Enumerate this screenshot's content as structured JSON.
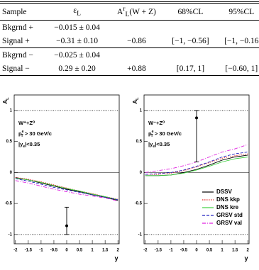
{
  "table": {
    "header": [
      "Sample",
      {
        "t": "ε",
        "sub": "L"
      },
      {
        "t": "A",
        "sup": "r",
        "sub": "L",
        "after": "(W + Z)"
      },
      "68%CL",
      "95%CL"
    ],
    "rows": [
      [
        "Bkgrnd +",
        "−0.015 ± 0.04"
      ],
      [
        "Signal +",
        "−0.31 ± 0.10",
        "−0.86",
        "[−1, −0.56]",
        "[−1, −0.16"
      ],
      [
        "Bkgrnd −",
        "−0.025 ± 0.04"
      ],
      [
        "Signal −",
        "0.29 ± 0.20",
        "+0.88",
        "[0.17, 1]",
        "[−0.60, 1]"
      ]
    ]
  },
  "chart_data": [
    {
      "type": "line",
      "xlabel": "y",
      "ylabel": {
        "t": "A",
        "sub": "L"
      },
      "xlim": [
        -2.05,
        2.05
      ],
      "ylim": [
        -1.15,
        1.25
      ],
      "xticks": [
        -2,
        -1.5,
        -1,
        -0.5,
        0,
        0.5,
        1,
        1.5,
        2
      ],
      "yticks": [
        -1,
        -0.5,
        0,
        0.5,
        1
      ],
      "annotations": [
        "W⁺+Z⁰",
        {
          "t": "p",
          "sup": "e",
          "sub": "T",
          "after": " > 30 GeV/c"
        },
        {
          "t": "|y",
          "sub": "e",
          "after": "|<0.35"
        }
      ],
      "hlines": [
        {
          "value": 1,
          "style": "dotted"
        },
        {
          "value": 0,
          "style": "solid"
        },
        {
          "value": -1,
          "style": "dotted"
        }
      ],
      "points": [
        {
          "x": 0,
          "y": -0.86,
          "ylow": -1.0,
          "yhigh": -0.56
        }
      ],
      "x": [
        -2,
        -1.5,
        -1,
        -0.5,
        0,
        0.5,
        1,
        1.5,
        2
      ],
      "legend": false,
      "series": [
        {
          "name": "DSSV",
          "color": "#000000",
          "dash": "solid",
          "values": [
            -0.08,
            -0.12,
            -0.17,
            -0.22,
            -0.27,
            -0.31,
            -0.36,
            -0.4,
            -0.45
          ]
        },
        {
          "name": "DNS kkp",
          "color": "#e02020",
          "dash": "dotted",
          "values": [
            -0.08,
            -0.11,
            -0.15,
            -0.2,
            -0.25,
            -0.3,
            -0.34,
            -0.39,
            -0.43
          ]
        },
        {
          "name": "DNS kre",
          "color": "#40d040",
          "dash": "solid",
          "values": [
            -0.09,
            -0.12,
            -0.16,
            -0.21,
            -0.26,
            -0.3,
            -0.35,
            -0.39,
            -0.44
          ]
        },
        {
          "name": "GRSV std",
          "color": "#2020c0",
          "dash": "dashed",
          "values": [
            -0.1,
            -0.14,
            -0.19,
            -0.24,
            -0.28,
            -0.32,
            -0.36,
            -0.4,
            -0.44
          ]
        },
        {
          "name": "GRSV val",
          "color": "#e020e0",
          "dash": "dashdot",
          "values": [
            -0.13,
            -0.17,
            -0.22,
            -0.27,
            -0.31,
            -0.35,
            -0.38,
            -0.41,
            -0.46
          ]
        }
      ]
    },
    {
      "type": "line",
      "xlabel": "y",
      "ylabel": {
        "t": "A",
        "sub": "L"
      },
      "xlim": [
        -2.05,
        2.05
      ],
      "ylim": [
        -1.15,
        1.25
      ],
      "xticks": [
        -2,
        -1.5,
        -1,
        -0.5,
        0,
        0.5,
        1,
        1.5,
        2
      ],
      "yticks": [
        -1,
        -0.5,
        0,
        0.5,
        1
      ],
      "annotations": [
        "W⁻+Z⁰",
        {
          "t": "p",
          "sup": "e",
          "sub": "T",
          "after": " > 30 GeV/c"
        },
        {
          "t": "|y",
          "sub": "e",
          "after": "|<0.35"
        }
      ],
      "hlines": [
        {
          "value": 1,
          "style": "dotted"
        },
        {
          "value": 0,
          "style": "solid"
        },
        {
          "value": -1,
          "style": "dotted"
        }
      ],
      "points": [
        {
          "x": 0,
          "y": 0.88,
          "ylow": 0.17,
          "yhigh": 1
        }
      ],
      "x": [
        -2,
        -1.5,
        -1,
        -0.5,
        0,
        0.5,
        1,
        1.5,
        2
      ],
      "legend": true,
      "legend_position": "lower right",
      "series": [
        {
          "name": "DSSV",
          "color": "#000000",
          "dash": "solid",
          "values": [
            -0.05,
            -0.05,
            -0.04,
            0.0,
            0.05,
            0.12,
            0.2,
            0.25,
            0.28
          ]
        },
        {
          "name": "DNS kkp",
          "color": "#e02020",
          "dash": "dotted",
          "values": [
            -0.03,
            -0.03,
            -0.01,
            0.03,
            0.09,
            0.16,
            0.23,
            0.27,
            0.3
          ]
        },
        {
          "name": "DNS kre",
          "color": "#40d040",
          "dash": "solid",
          "values": [
            -0.05,
            -0.05,
            -0.04,
            -0.01,
            0.04,
            0.1,
            0.17,
            0.22,
            0.25
          ]
        },
        {
          "name": "GRSV std",
          "color": "#2020c0",
          "dash": "dashed",
          "values": [
            -0.03,
            -0.02,
            0.0,
            0.04,
            0.1,
            0.17,
            0.25,
            0.3,
            0.33
          ]
        },
        {
          "name": "GRSV val",
          "color": "#e020e0",
          "dash": "dashdot",
          "values": [
            0.0,
            0.03,
            0.06,
            0.11,
            0.17,
            0.25,
            0.33,
            0.38,
            0.45
          ]
        }
      ]
    }
  ]
}
